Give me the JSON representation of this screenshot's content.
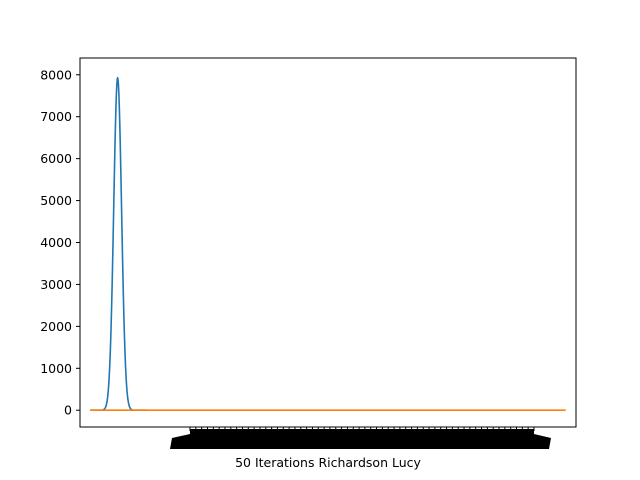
{
  "chart_data": {
    "type": "line",
    "title": "",
    "xlabel": "50 Iterations Richardson Lucy",
    "ylabel": "",
    "ylim": [
      -400,
      8400
    ],
    "xlim": [
      -6,
      284
    ],
    "yticks": [
      0,
      1000,
      2000,
      3000,
      4000,
      5000,
      6000,
      7000,
      8000
    ],
    "grid": false,
    "legend": "none",
    "series": [
      {
        "color": "#1f77b4",
        "shape": "gaussian",
        "peak_x": 16,
        "peak_y": 7930,
        "sigma": 2.3,
        "x_range": [
          0,
          33
        ]
      },
      {
        "color": "#ff7f0e",
        "x": [
          0,
          40,
          80,
          120,
          160,
          200,
          240,
          278
        ],
        "y": [
          0,
          0,
          0,
          0,
          0,
          0,
          0,
          0
        ]
      }
    ],
    "x_tick_band_note_hidden": true
  }
}
